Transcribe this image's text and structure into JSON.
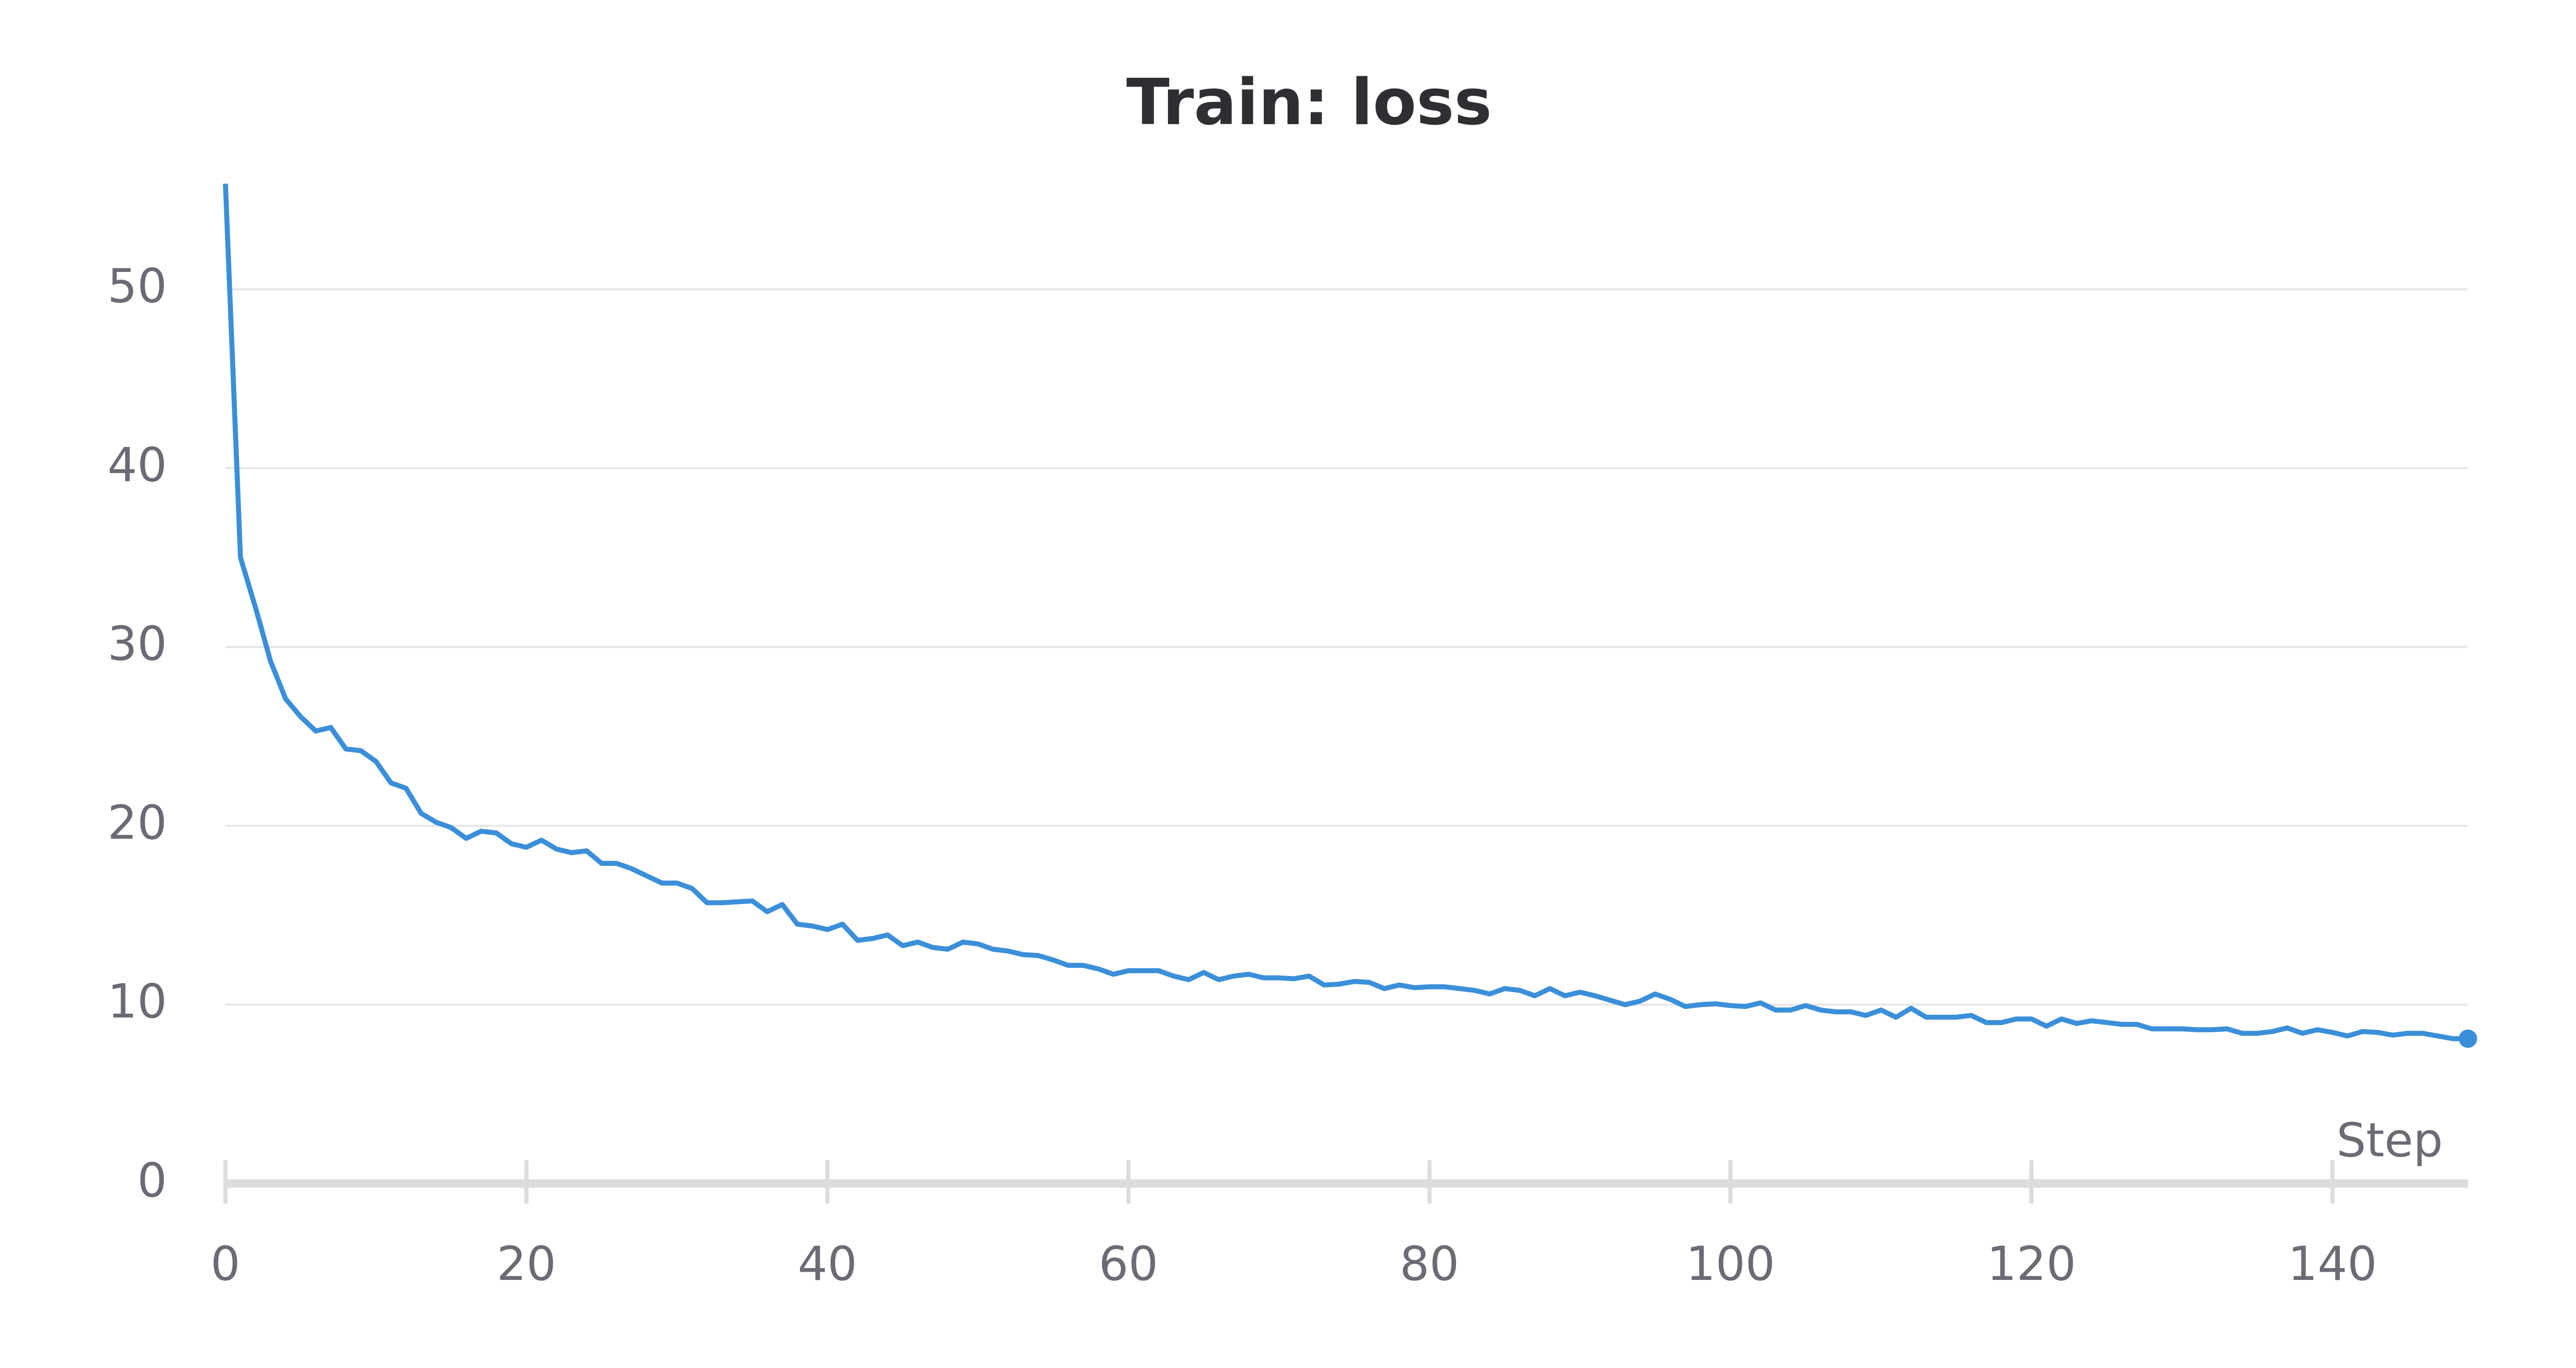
{
  "chart_data": {
    "type": "line",
    "title": "Train: loss",
    "x_label": "Step",
    "x": [
      0,
      1,
      2,
      3,
      4,
      5,
      6,
      7,
      8,
      9,
      10,
      11,
      12,
      13,
      14,
      15,
      16,
      17,
      18,
      19,
      20,
      21,
      22,
      23,
      24,
      25,
      26,
      27,
      28,
      29,
      30,
      31,
      32,
      33,
      34,
      35,
      36,
      37,
      38,
      39,
      40,
      41,
      42,
      43,
      44,
      45,
      46,
      47,
      48,
      49,
      50,
      51,
      52,
      53,
      54,
      55,
      56,
      57,
      58,
      59,
      60,
      61,
      62,
      63,
      64,
      65,
      66,
      67,
      68,
      69,
      70,
      71,
      72,
      73,
      74,
      75,
      76,
      77,
      78,
      79,
      80,
      81,
      82,
      83,
      84,
      85,
      86,
      87,
      88,
      89,
      90,
      91,
      92,
      93,
      94,
      95,
      96,
      97,
      98,
      99,
      100,
      101,
      102,
      103,
      104,
      105,
      106,
      107,
      108,
      109,
      110,
      111,
      112,
      113,
      114,
      115,
      116,
      117,
      118,
      119,
      120,
      121,
      122,
      123,
      124,
      125,
      126,
      127,
      128,
      129,
      130,
      131,
      132,
      133,
      134,
      135,
      136,
      137,
      138,
      139,
      140,
      141,
      142,
      143,
      144,
      145,
      146,
      147,
      148,
      149
    ],
    "values": [
      55.9,
      35,
      32.2,
      29.2,
      27.1,
      26.1,
      25.3,
      25.5,
      24.3,
      24.2,
      23.6,
      22.4,
      22.1,
      20.7,
      20.2,
      19.9,
      19.3,
      19.7,
      19.6,
      19.0,
      18.8,
      19.2,
      18.7,
      18.5,
      18.6,
      17.9,
      17.9,
      17.6,
      17.2,
      16.8,
      16.8,
      16.5,
      15.7,
      15.7,
      15.75,
      15.8,
      15.2,
      15.6,
      14.5,
      14.4,
      14.2,
      14.5,
      13.6,
      13.7,
      13.9,
      13.3,
      13.5,
      13.2,
      13.1,
      13.5,
      13.4,
      13.1,
      13.0,
      12.8,
      12.75,
      12.5,
      12.2,
      12.2,
      12.0,
      11.7,
      11.9,
      11.9,
      11.9,
      11.6,
      11.4,
      11.8,
      11.4,
      11.6,
      11.7,
      11.5,
      11.5,
      11.45,
      11.6,
      11.1,
      11.15,
      11.3,
      11.25,
      10.9,
      11.1,
      10.95,
      11.0,
      11.0,
      10.9,
      10.8,
      10.6,
      10.9,
      10.8,
      10.5,
      10.9,
      10.5,
      10.7,
      10.5,
      10.25,
      10.0,
      10.2,
      10.6,
      10.3,
      9.9,
      10.0,
      10.05,
      9.95,
      9.9,
      10.1,
      9.7,
      9.7,
      9.95,
      9.7,
      9.6,
      9.6,
      9.4,
      9.7,
      9.3,
      9.8,
      9.3,
      9.3,
      9.3,
      9.4,
      9.0,
      9.0,
      9.2,
      9.2,
      8.8,
      9.2,
      8.95,
      9.1,
      9.0,
      8.9,
      8.9,
      8.65,
      8.65,
      8.65,
      8.6,
      8.6,
      8.65,
      8.4,
      8.4,
      8.5,
      8.7,
      8.4,
      8.6,
      8.45,
      8.25,
      8.5,
      8.45,
      8.3,
      8.4,
      8.4,
      8.25,
      8.1,
      8.1
    ],
    "color": "#3b8fd9",
    "xlim": [
      0,
      149
    ],
    "xticks": [
      0,
      20,
      40,
      60,
      80,
      100,
      120,
      140
    ],
    "ylim": [
      0,
      56
    ],
    "yticks": [
      0,
      10,
      20,
      30,
      40,
      50
    ],
    "grid": true
  }
}
